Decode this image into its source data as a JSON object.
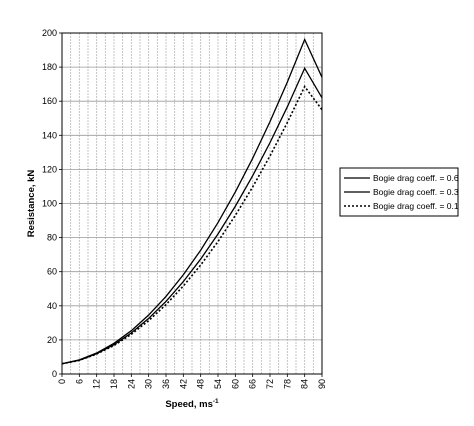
{
  "chart_data": {
    "type": "line",
    "xlabel": "Speed, ms",
    "xlabel_superscript": "-1",
    "ylabel": "Resistance, kN",
    "xlim": [
      0,
      90
    ],
    "ylim": [
      0,
      200
    ],
    "xticks": [
      0,
      6,
      12,
      18,
      24,
      30,
      36,
      42,
      48,
      54,
      60,
      66,
      72,
      78,
      84,
      90
    ],
    "yticks": [
      0,
      20,
      40,
      60,
      80,
      100,
      120,
      140,
      160,
      180,
      200
    ],
    "x_minor_step": 3,
    "grid": true,
    "legend_placement": "right",
    "series": [
      {
        "name": "Bogie drag coeff. = 0.6",
        "style": "solid",
        "x": [
          0,
          6,
          12,
          18,
          24,
          30,
          36,
          42,
          48,
          54,
          60,
          66,
          72,
          78,
          84,
          90
        ],
        "y": [
          6,
          8.3,
          12.3,
          18,
          25.4,
          34.6,
          45.5,
          58.2,
          72.6,
          88.8,
          106.8,
          126.5,
          148,
          171.2,
          196.2,
          174
        ]
      },
      {
        "name": "Bogie drag coeff. = 0.3",
        "style": "solid",
        "x": [
          0,
          6,
          12,
          18,
          24,
          30,
          36,
          42,
          48,
          54,
          60,
          66,
          72,
          78,
          84,
          90
        ],
        "y": [
          6,
          8.1,
          11.9,
          17.2,
          24.1,
          32.6,
          42.6,
          54.2,
          67.4,
          82.1,
          98.4,
          116.3,
          135.7,
          156.7,
          179.3,
          162
        ]
      },
      {
        "name": "Bogie drag coeff. = 0.1",
        "style": "dotted",
        "x": [
          0,
          6,
          12,
          18,
          24,
          30,
          36,
          42,
          48,
          54,
          60,
          66,
          72,
          78,
          84,
          90
        ],
        "y": [
          6,
          8.0,
          11.7,
          16.7,
          23.3,
          31.3,
          40.7,
          51.6,
          63.9,
          77.7,
          93.0,
          109.7,
          127.9,
          147.5,
          168.6,
          155
        ]
      }
    ]
  }
}
